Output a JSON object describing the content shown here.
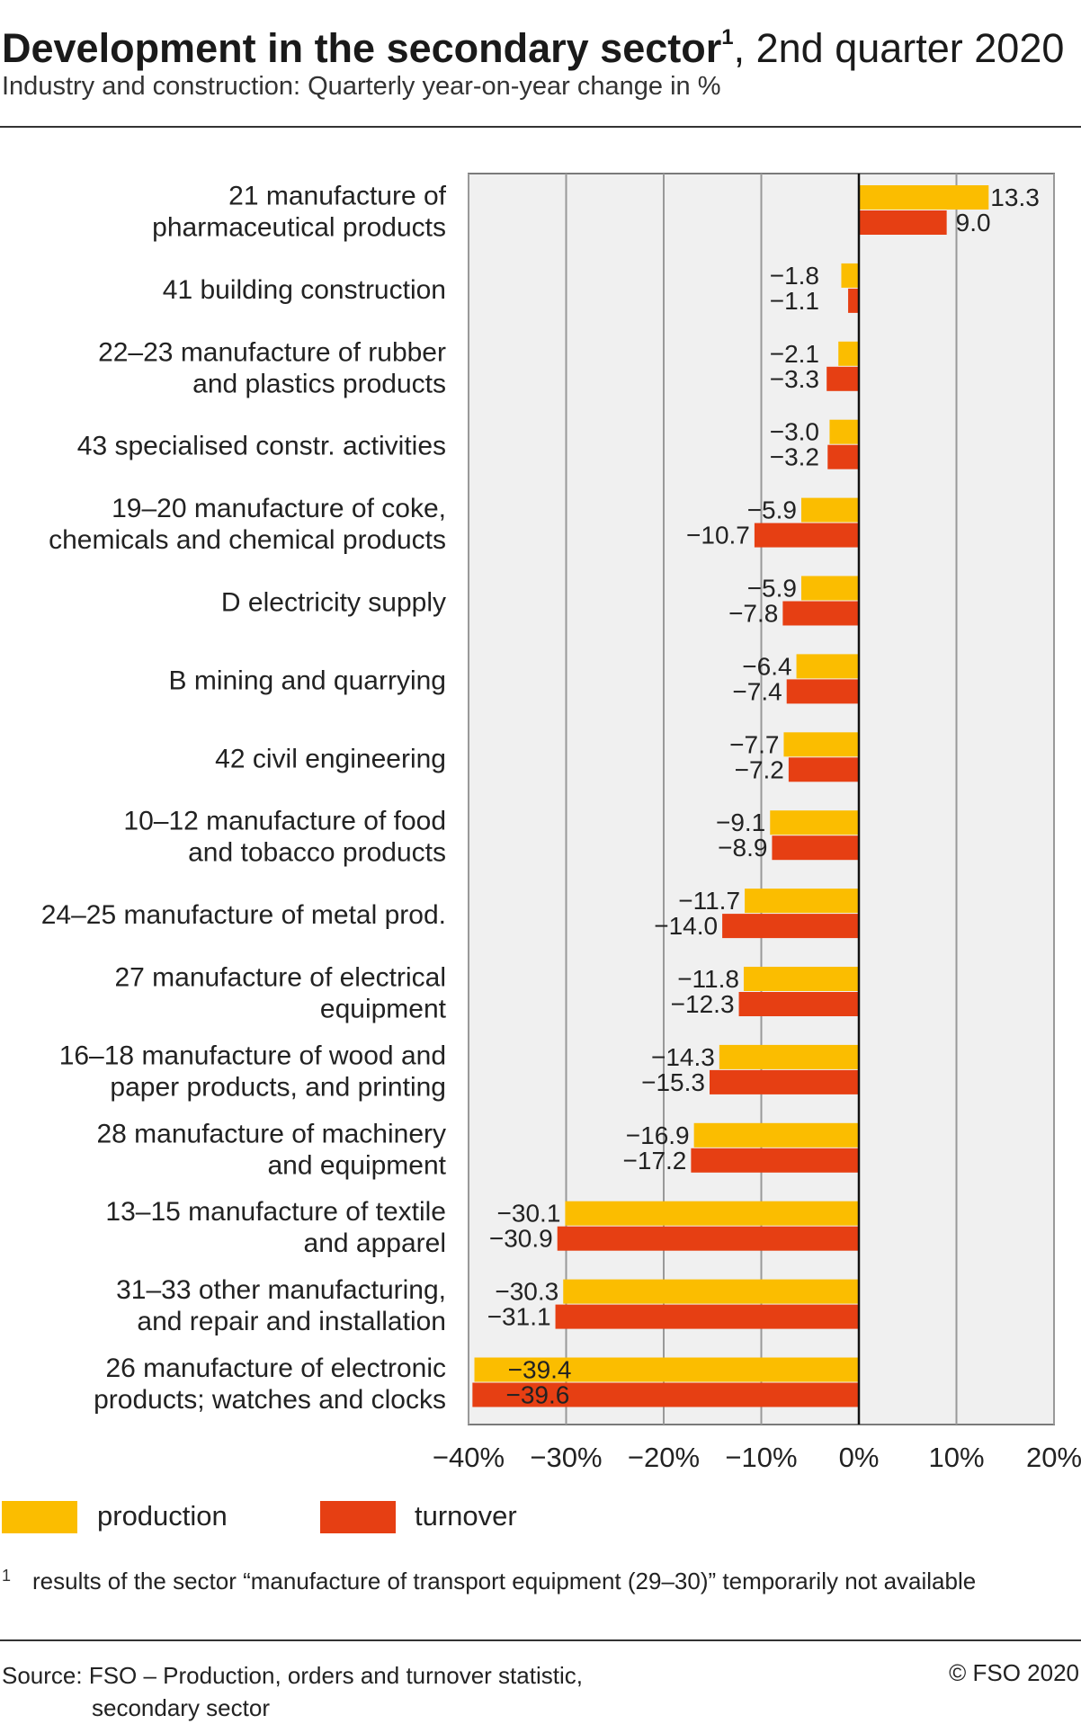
{
  "header": {
    "title_bold": "Development in the secondary sector",
    "title_sup": "1",
    "title_rest": ", 2nd quarter 2020",
    "subtitle": "Industry and construction: Quarterly year-on-year change in %"
  },
  "chart_data": {
    "type": "bar",
    "orientation": "horizontal",
    "categories": [
      [
        "21 manufacture of",
        "pharmaceutical products"
      ],
      [
        "41 building construction"
      ],
      [
        "22–23 manufacture of rubber",
        "and plastics products"
      ],
      [
        "43 specialised constr. activities"
      ],
      [
        "19–20 manufacture of coke,",
        "chemicals and chemical products"
      ],
      [
        "D electricity supply"
      ],
      [
        "B mining and quarrying"
      ],
      [
        "42 civil engineering"
      ],
      [
        "10–12 manufacture of food",
        "and tobacco products"
      ],
      [
        "24–25 manufacture of metal prod."
      ],
      [
        "27 manufacture of electrical",
        "equipment"
      ],
      [
        "16–18 manufacture of wood and",
        "paper products, and printing"
      ],
      [
        "28 manufacture of machinery",
        "and equipment"
      ],
      [
        "13–15 manufacture of textile",
        "and apparel"
      ],
      [
        "31–33 other manufacturing,",
        "and repair and installation"
      ],
      [
        "26 manufacture of electronic",
        "products; watches and clocks"
      ]
    ],
    "series": [
      {
        "name": "production",
        "color": "#fbbd00",
        "values": [
          13.3,
          -1.8,
          -2.1,
          -3.0,
          -5.9,
          -5.9,
          -6.4,
          -7.7,
          -9.1,
          -11.7,
          -11.8,
          -14.3,
          -16.9,
          -30.1,
          -30.3,
          -39.4
        ],
        "labels": [
          "13.3",
          "−1.8",
          "−2.1",
          "−3.0",
          "−5.9",
          "−5.9",
          "−6.4",
          "−7.7",
          "−9.1",
          "−11.7",
          "−11.8",
          "−14.3",
          "−16.9",
          "−30.1",
          "−30.3",
          "−39.4"
        ]
      },
      {
        "name": "turnover",
        "color": "#e63f13",
        "values": [
          9.0,
          -1.1,
          -3.3,
          -3.2,
          -10.7,
          -7.8,
          -7.4,
          -7.2,
          -8.9,
          -14.0,
          -12.3,
          -15.3,
          -17.2,
          -30.9,
          -31.1,
          -39.6
        ],
        "labels": [
          "9.0",
          "−1.1",
          "−3.3",
          "−3.2",
          "−10.7",
          "−7.8",
          "−7.4",
          "−7.2",
          "−8.9",
          "−14.0",
          "−12.3",
          "−15.3",
          "−17.2",
          "−30.9",
          "−31.1",
          "−39.6"
        ]
      }
    ],
    "xlim": [
      -40,
      20
    ],
    "xticks": [
      -40,
      -30,
      -20,
      -10,
      0,
      10,
      20
    ],
    "xtick_labels": [
      "−40%",
      "−30%",
      "−20%",
      "−10%",
      "0%",
      "10%",
      "20%"
    ],
    "grid": true,
    "plot_background": "#f0f0f0",
    "gridline_color": "#999999",
    "legend_placement": "bottom-left"
  },
  "legend": {
    "production_label": "production",
    "turnover_label": "turnover"
  },
  "footnote": {
    "mark": "1",
    "text": "results of the sector “manufacture of transport equipment (29–30)” temporarily not available"
  },
  "source": {
    "line1": "Source: FSO – Production, orders and turnover statistic,",
    "line2": "secondary sector",
    "copyright": "© FSO 2020"
  }
}
